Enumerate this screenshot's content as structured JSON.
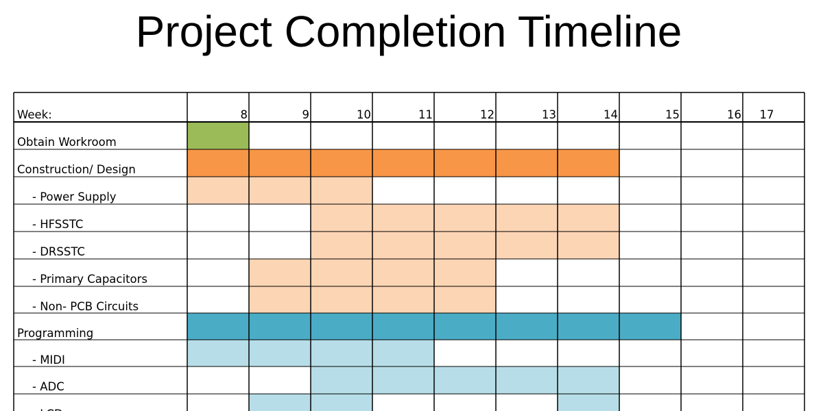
{
  "title": "Project Completion Timeline",
  "chart_data": {
    "type": "table",
    "header_label": "Week:",
    "weeks": [
      "8",
      "9",
      "10",
      "11",
      "12",
      "13",
      "14",
      "15",
      "16",
      "17"
    ],
    "colors": {
      "green": "#9BBB59",
      "orange_dark": "#F79646",
      "orange_light": "#FCD5B5",
      "blue_dark": "#4BACC6",
      "blue_light": "#B7DEE8",
      "grid": "#000000"
    },
    "tasks": [
      {
        "label": "Obtain Workroom",
        "indent": false,
        "weeks": [
          8
        ],
        "color": "green"
      },
      {
        "label": "Construction/ Design",
        "indent": false,
        "weeks": [
          8,
          9,
          10,
          11,
          12,
          13,
          14
        ],
        "color": "orange_dark"
      },
      {
        "label": "- Power Supply",
        "indent": true,
        "weeks": [
          8,
          9,
          10
        ],
        "color": "orange_light"
      },
      {
        "label": "- HFSSTC",
        "indent": true,
        "weeks": [
          10,
          11,
          12,
          13,
          14
        ],
        "color": "orange_light"
      },
      {
        "label": "- DRSSTC",
        "indent": true,
        "weeks": [
          10,
          11,
          12,
          13,
          14
        ],
        "color": "orange_light"
      },
      {
        "label": "- Primary Capacitors",
        "indent": true,
        "weeks": [
          9,
          10,
          11,
          12
        ],
        "color": "orange_light"
      },
      {
        "label": "- Non- PCB Circuits",
        "indent": true,
        "weeks": [
          9,
          10,
          11,
          12
        ],
        "color": "orange_light"
      },
      {
        "label": "Programming",
        "indent": false,
        "weeks": [
          8,
          9,
          10,
          11,
          12,
          13,
          14,
          15
        ],
        "color": "blue_dark"
      },
      {
        "label": "- MIDI",
        "indent": true,
        "weeks": [
          8,
          9,
          10,
          11
        ],
        "color": "blue_light"
      },
      {
        "label": "- ADC",
        "indent": true,
        "weeks": [
          10,
          11,
          12,
          13,
          14
        ],
        "color": "blue_light"
      },
      {
        "label": "- LCD",
        "indent": true,
        "weeks": [
          9,
          10,
          14
        ],
        "color": "blue_light"
      }
    ]
  }
}
